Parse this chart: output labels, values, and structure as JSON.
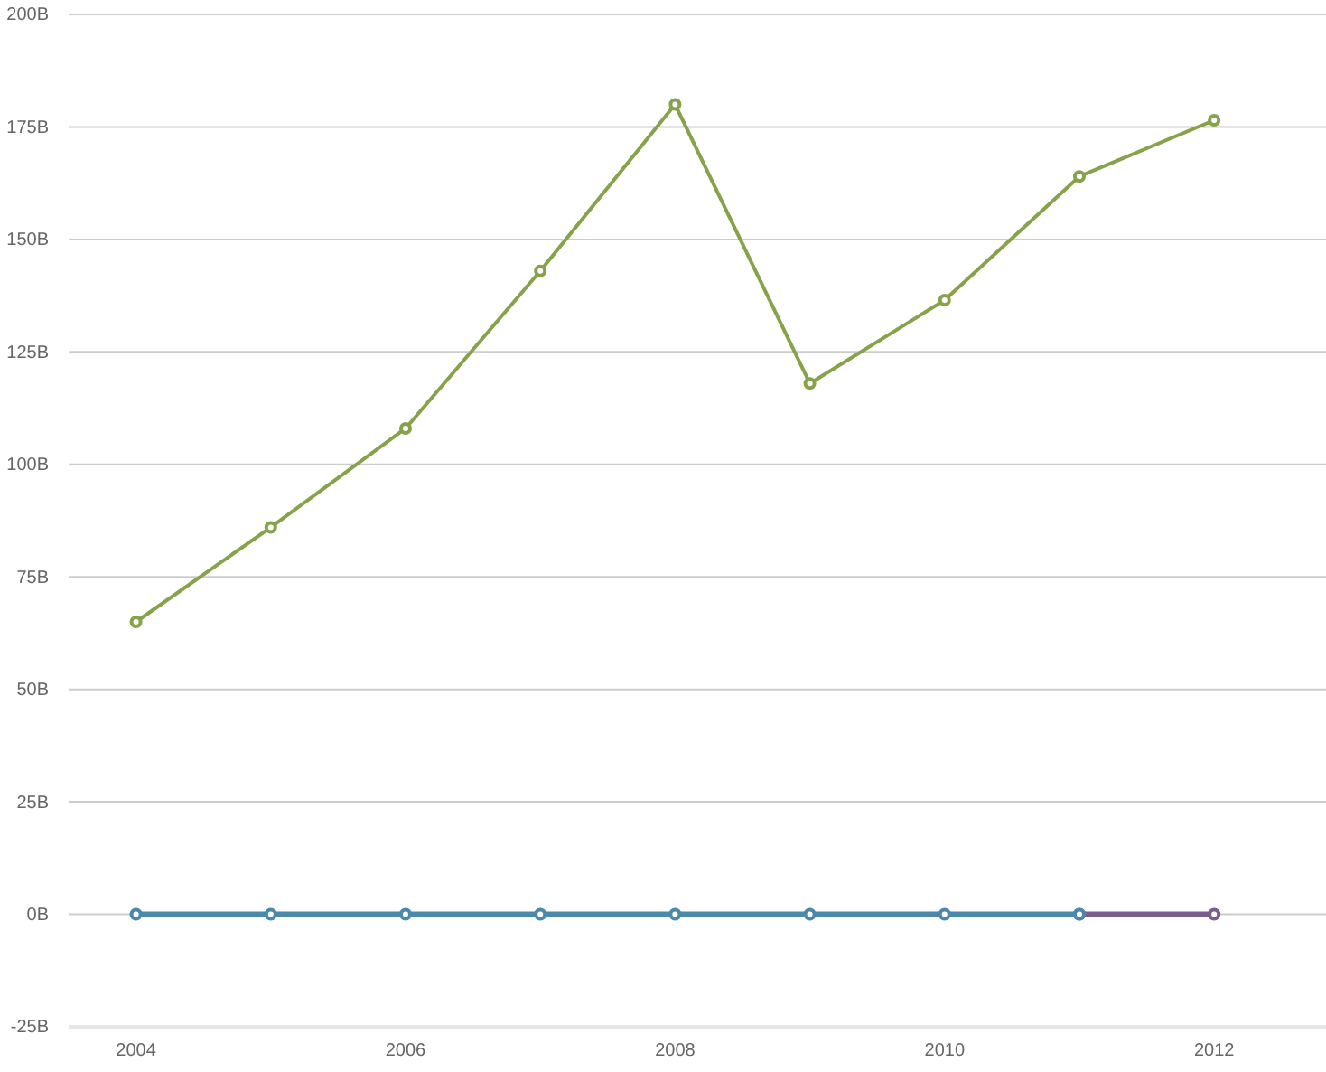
{
  "chart_data": {
    "type": "line",
    "x": [
      2004,
      2005,
      2006,
      2007,
      2008,
      2009,
      2010,
      2011,
      2012
    ],
    "series": [
      {
        "color": "#87a24b",
        "values": [
          65,
          86,
          108,
          143,
          180,
          118,
          136.5,
          164,
          176.5
        ]
      },
      {
        "color": "#7a5e8c",
        "values": [
          null,
          null,
          null,
          null,
          null,
          null,
          null,
          0,
          0
        ]
      },
      {
        "color": "#4a89aa",
        "values": [
          0,
          0,
          0,
          0,
          0,
          0,
          0,
          0,
          null
        ]
      }
    ],
    "xlim": [
      2003.5,
      2012.83
    ],
    "xticks": [
      2004,
      2006,
      2008,
      2010,
      2012
    ],
    "ylim": [
      -25,
      200
    ],
    "yticks": [
      {
        "value": -25,
        "label": "-25B"
      },
      {
        "value": 0,
        "label": "0B"
      },
      {
        "value": 25,
        "label": "25B"
      },
      {
        "value": 50,
        "label": "50B"
      },
      {
        "value": 75,
        "label": "75B"
      },
      {
        "value": 100,
        "label": "100B"
      },
      {
        "value": 125,
        "label": "125B"
      },
      {
        "value": 150,
        "label": "150B"
      },
      {
        "value": 175,
        "label": "175B"
      },
      {
        "value": 200,
        "label": "200B"
      }
    ],
    "grid": "y",
    "marker": "circle",
    "line_style": "solid"
  }
}
